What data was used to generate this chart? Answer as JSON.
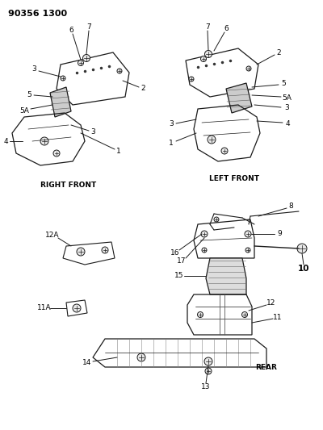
{
  "title": "90356 1300",
  "background_color": "#ffffff",
  "figsize": [
    4.0,
    5.33
  ],
  "dpi": 100,
  "right_front_label": "RIGHT FRONT",
  "left_front_label": "LEFT FRONT",
  "rear_label": "REAR"
}
